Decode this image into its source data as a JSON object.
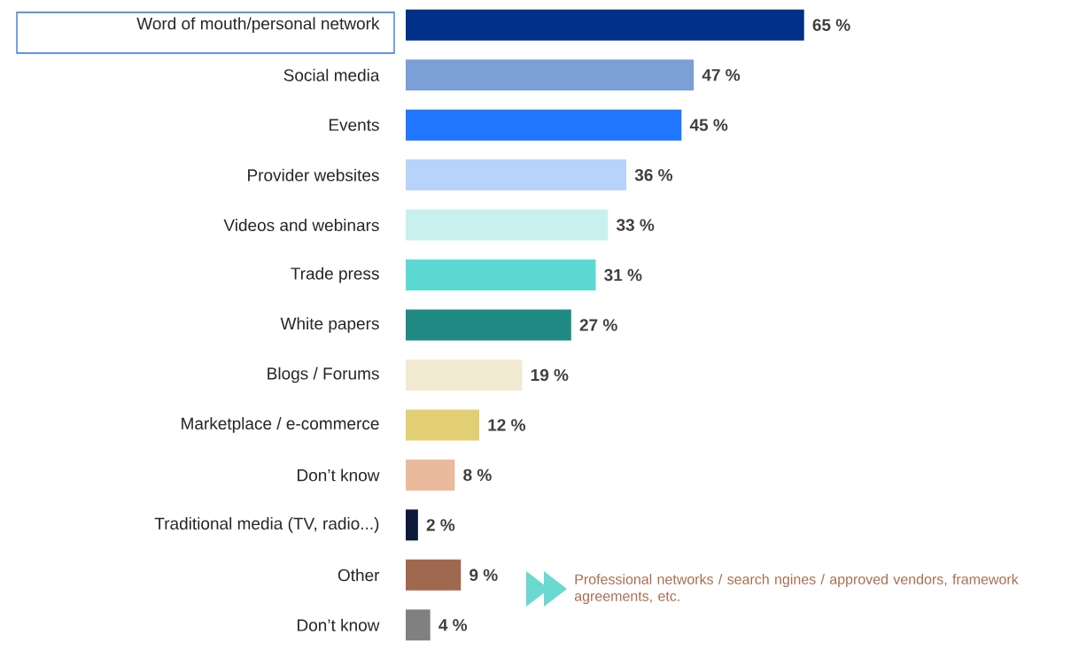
{
  "chart_data": {
    "type": "bar",
    "orientation": "horizontal",
    "categories": [
      "Word of mouth/personal network",
      "Social media",
      "Events",
      "Provider websites",
      "Videos and webinars",
      "Trade press",
      "White papers",
      "Blogs / Forums",
      "Marketplace / e-commerce",
      "Don’t know",
      "Traditional media (TV, radio...)",
      "Other",
      "Don’t know"
    ],
    "values": [
      65,
      47,
      45,
      36,
      33,
      31,
      27,
      19,
      12,
      8,
      2,
      9,
      4
    ],
    "colors": [
      "#003087",
      "#7b9fd6",
      "#2176ff",
      "#b7d3fb",
      "#c8f0ee",
      "#5dd9d4",
      "#208a84",
      "#f1ead0",
      "#e3cf73",
      "#ebb99c",
      "#0b1a3a",
      "#a0694f",
      "#808080"
    ],
    "value_labels": [
      "65 %",
      "47 %",
      "45 %",
      "36 %",
      "33 %",
      "31 %",
      "27 %",
      "19 %",
      "12 %",
      "8 %",
      "2 %",
      "9 %",
      "4 %"
    ],
    "annotations": [
      "Professional networks / search ngines / approved vendors, framework agreements, etc."
    ]
  }
}
